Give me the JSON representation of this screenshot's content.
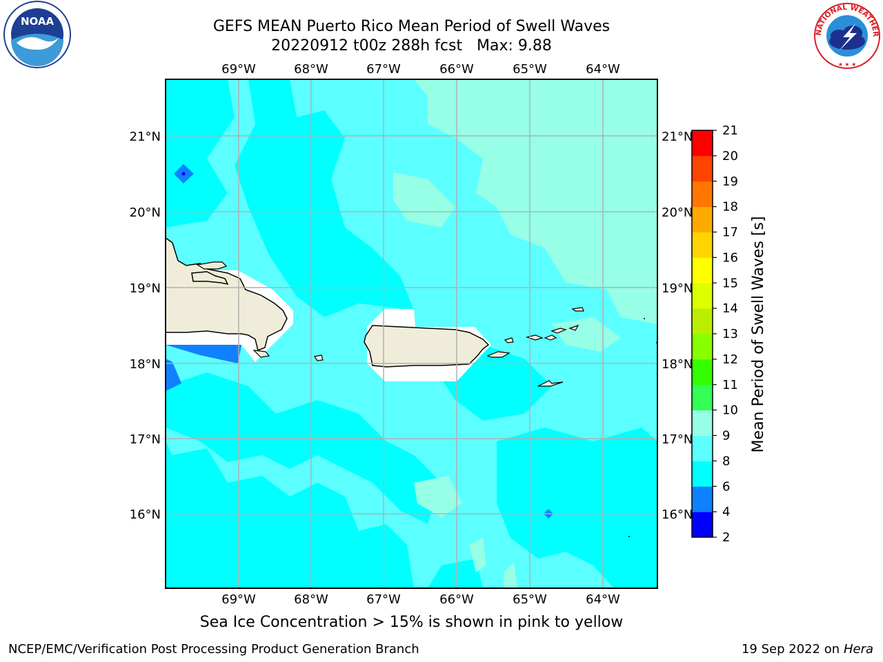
{
  "title": {
    "line1": "GEFS MEAN Puerto Rico Mean Period of Swell Waves",
    "line2": "20220912 t00z 288h fcst   Max: 9.88"
  },
  "map": {
    "lon_labels": [
      "69°W",
      "68°W",
      "67°W",
      "66°W",
      "65°W",
      "64°W"
    ],
    "lat_labels": [
      "21°N",
      "20°N",
      "19°N",
      "18°N",
      "17°N",
      "16°N"
    ],
    "land_color": "#efedd9",
    "field_colors": {
      "dark_blue": "#0f80ff",
      "cyan": "#00ffff",
      "light_cyan": "#5cffff",
      "aqua": "#96ffe6"
    }
  },
  "colorbar": {
    "label": "Mean Period of Swell Waves [s]",
    "ticks": [
      "2",
      "4",
      "6",
      "8",
      "9",
      "10",
      "11",
      "12",
      "13",
      "14",
      "15",
      "16",
      "17",
      "18",
      "19",
      "20",
      "21"
    ],
    "colors": [
      "#0000ff",
      "#0f80ff",
      "#00ffff",
      "#5cffff",
      "#96ffe6",
      "#33ff55",
      "#33ff00",
      "#88ff00",
      "#bbee00",
      "#ddff00",
      "#ffff00",
      "#ffd400",
      "#ffaa00",
      "#ff7700",
      "#ff4400",
      "#ff0000"
    ]
  },
  "ice_note": "Sea Ice Concentration > 15% is shown in pink to yellow",
  "footer": {
    "left": "NCEP/EMC/Verification Post Processing Product Generation Branch",
    "right_prefix": "19 Sep 2022 on",
    "right_host": "Hera"
  },
  "logos": {
    "noaa_text": "NOAA",
    "nws_text": "NATIONAL WEATHER SERVICE"
  }
}
